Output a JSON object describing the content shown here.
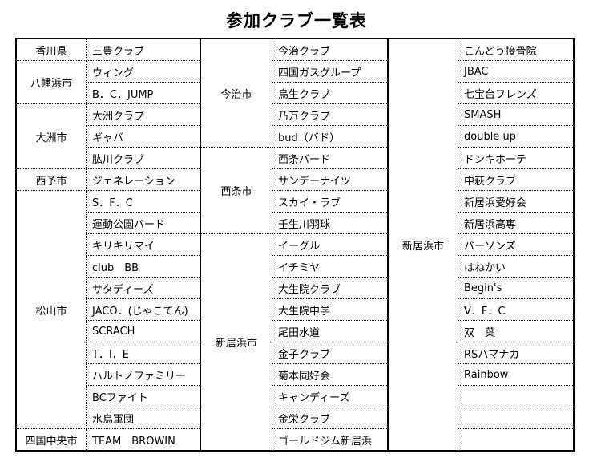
{
  "title": "参加クラブ一覧表",
  "left_groups": [
    {
      "city": "香川県",
      "clubs": [
        "三豊クラブ"
      ]
    },
    {
      "city": "八幡浜市",
      "clubs": [
        "ウィング",
        "B．C．JUMP"
      ]
    },
    {
      "city": "大洲市",
      "clubs": [
        "大洲クラブ",
        "ギャバ",
        "肱川クラブ"
      ]
    },
    {
      "city": "西予市",
      "clubs": [
        "ジェネレーション"
      ]
    },
    {
      "city": "松山市",
      "clubs": [
        "S．F．C",
        "運動公園バード",
        "キリキリマイ",
        "club　BB",
        "サタディーズ",
        "JACO．(じゃこてん)",
        "SCRACH",
        "T．I．E",
        "ハルトノファミリー",
        "BCファイト",
        "水鳥軍団"
      ]
    },
    {
      "city": "四国中央市",
      "clubs": [
        "TEAM　BROWIN"
      ]
    }
  ],
  "middle_groups": [
    {
      "city": "今治市",
      "clubs": [
        "今治クラブ",
        "四国ガスグループ",
        "鳥生クラブ",
        "乃万クラブ",
        "bud（バド）"
      ]
    },
    {
      "city": "西条市",
      "clubs": [
        "西条バード",
        "サンデーナイツ",
        "スカイ・ラブ",
        "壬生川羽球"
      ]
    },
    {
      "city": "新居浜市",
      "clubs": [
        "イーグル",
        "イチミヤ",
        "大生院クラブ",
        "大生院中学",
        "尾田水道",
        "金子クラブ",
        "菊本同好会",
        "キャンディーズ",
        "金栄クラブ",
        "ゴールドジム新居浜"
      ]
    }
  ],
  "right_groups": [
    {
      "city": "新居浜市",
      "clubs": [
        "こんどう接骨院",
        "JBAC",
        "七宝台フレンズ",
        "SMASH",
        "double up",
        "ドンキホーテ",
        "中萩クラブ",
        "新居浜愛好会",
        "新居浜高専",
        "パーソンズ",
        "はねかい",
        "Begin's",
        "V．F．C",
        "双　葉",
        "RSハマナカ",
        "Rainbow",
        "",
        "",
        ""
      ]
    }
  ]
}
